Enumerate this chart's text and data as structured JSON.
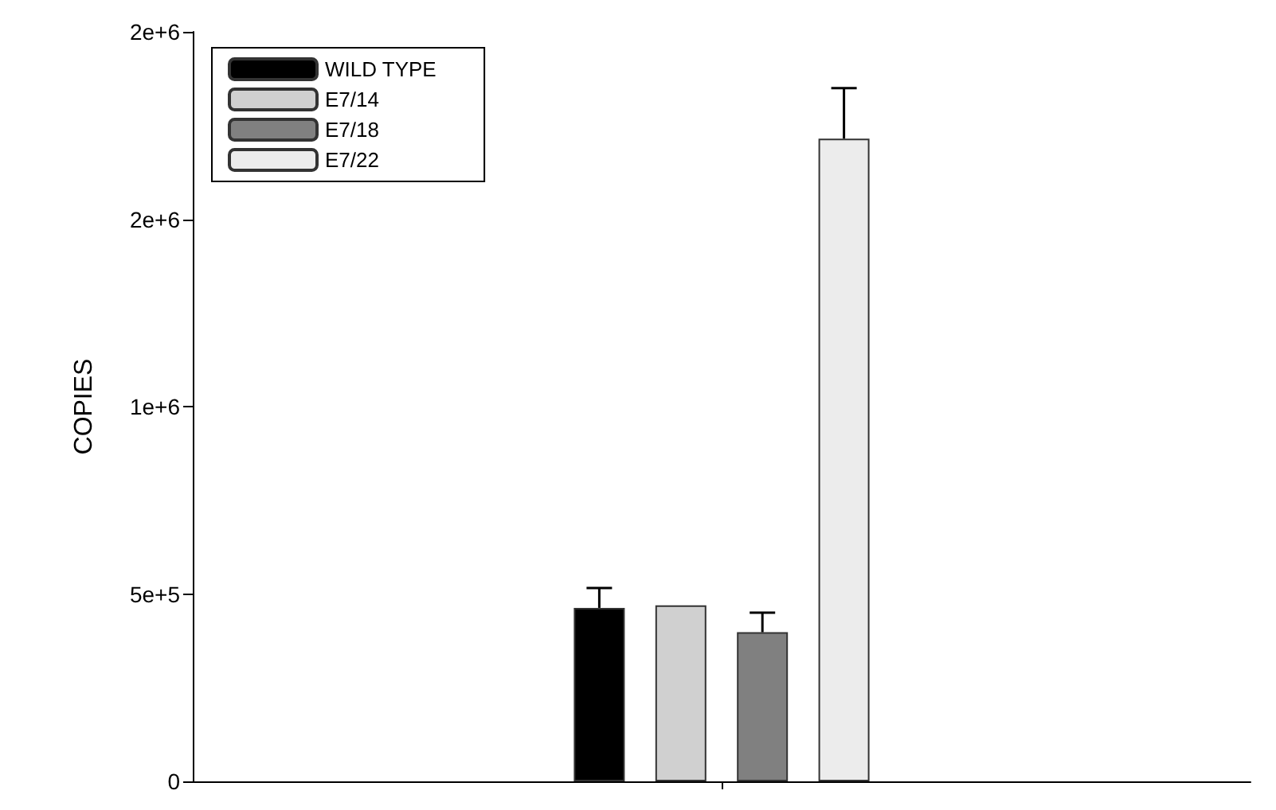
{
  "chart_data": {
    "type": "bar",
    "ylabel": "COPIES",
    "categories": [
      null
    ],
    "series": [
      {
        "name": "WILD TYPE",
        "color": "#000000",
        "values": [
          463000
        ],
        "errors": [
          [
            463000,
            516000
          ]
        ]
      },
      {
        "name": "E7/14",
        "color": "#d0d0d0",
        "values": [
          470000
        ]
      },
      {
        "name": "E7/18",
        "color": "#808080",
        "values": [
          398000
        ],
        "errors": [
          [
            398000,
            450000
          ]
        ]
      },
      {
        "name": "E7/22",
        "color": "#ececec",
        "values": [
          1715000
        ],
        "errors": [
          [
            1715000,
            1850000
          ]
        ]
      }
    ],
    "ylim": [
      0,
      2000000
    ],
    "yticks": [
      0,
      {
        "value": 500000,
        "label": "5e+5"
      },
      {
        "value": 1000000,
        "label": "1e+6"
      },
      {
        "value": 1500000,
        "label": "2e+6"
      },
      {
        "value": 2000000,
        "label": "2e+6"
      }
    ],
    "grid": false,
    "legend": "top left"
  }
}
